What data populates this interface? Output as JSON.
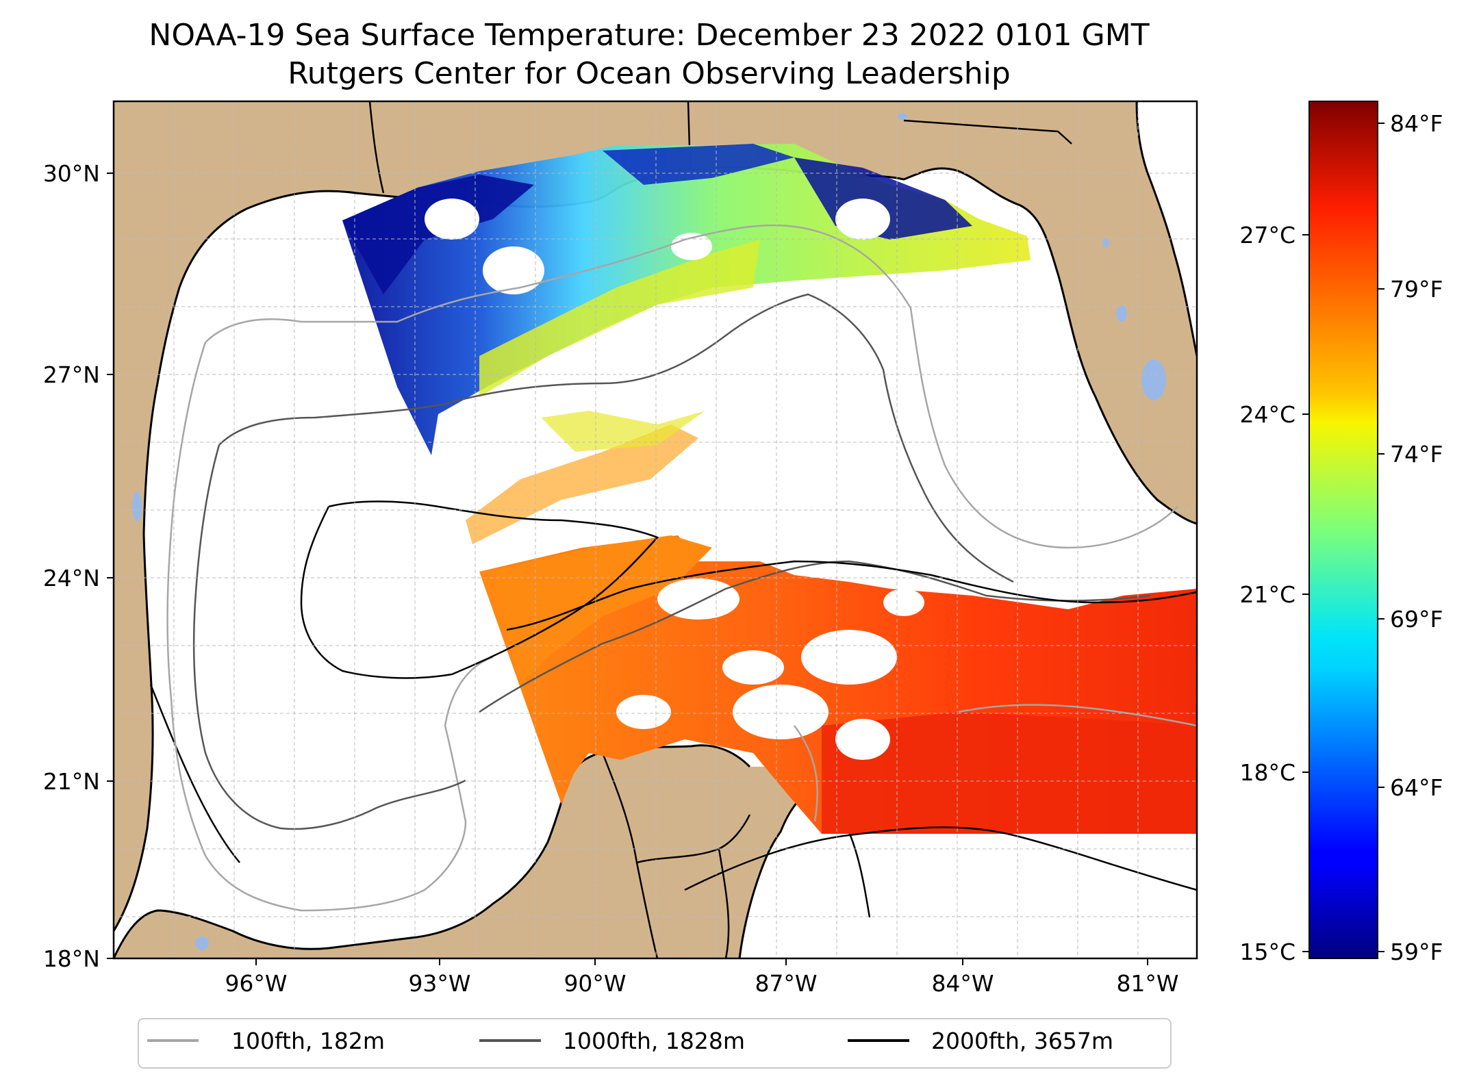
{
  "title": {
    "line1": "NOAA-19 Sea Surface Temperature: December 23 2022 0101 GMT",
    "line2": "Rutgers Center for Ocean Observing Leadership"
  },
  "map": {
    "lon_range": [
      -98.2,
      -80.3
    ],
    "lat_range": [
      18,
      31.1
    ],
    "lat_ticks": [
      "30°N",
      "27°N",
      "24°N",
      "21°N",
      "18°N"
    ],
    "lon_ticks": [
      "96°W",
      "93°W",
      "90°W",
      "87°W",
      "84°W",
      "81°W"
    ],
    "land_color": "#d2b48c",
    "lake_color": "#9ab8e6"
  },
  "colorbar": {
    "colormap": "jet",
    "celsius_range": [
      15,
      29
    ],
    "celsius_ticks": [
      "27°C",
      "24°C",
      "21°C",
      "18°C",
      "15°C"
    ],
    "fahrenheit_ticks": [
      "84°F",
      "79°F",
      "74°F",
      "69°F",
      "64°F",
      "59°F"
    ]
  },
  "legend": {
    "items": [
      {
        "label": "100fth, 182m",
        "color": "#a6a6a6"
      },
      {
        "label": "1000fth, 1828m",
        "color": "#555555"
      },
      {
        "label": "2000fth, 3657m",
        "color": "#000000"
      }
    ]
  }
}
